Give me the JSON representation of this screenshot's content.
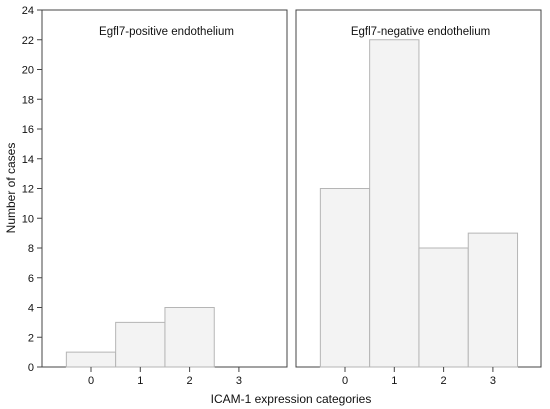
{
  "chart_data": {
    "type": "bar",
    "ylabel": "Number of cases",
    "xlabel": "ICAM-1 expression categories",
    "ylim": [
      0,
      24
    ],
    "yticks": [
      0,
      2,
      4,
      6,
      8,
      10,
      12,
      14,
      16,
      18,
      20,
      22,
      24
    ],
    "categories": [
      "0",
      "1",
      "2",
      "3"
    ],
    "grid": false,
    "panels": [
      {
        "title": "Egfl7-positive endothelium",
        "values": [
          1,
          3,
          4,
          0
        ]
      },
      {
        "title": "Egfl7-negative endothelium",
        "values": [
          12,
          22,
          8,
          9
        ]
      }
    ]
  }
}
